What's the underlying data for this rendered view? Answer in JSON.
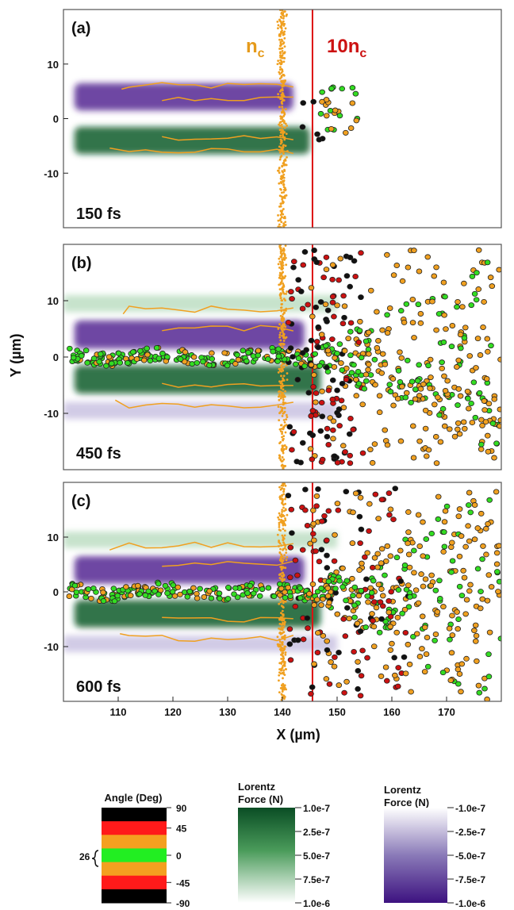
{
  "chart_data": {
    "type": "scatter",
    "xlabel": "X (µm)",
    "ylabel": "Y (µm)",
    "xlim": [
      100,
      180
    ],
    "ylim": [
      -20,
      20
    ],
    "x_ticks": [
      110,
      120,
      130,
      140,
      150,
      160,
      170
    ],
    "y_ticks": [
      10,
      0,
      -10
    ],
    "density_annotations": [
      {
        "text": "n",
        "sub": "c",
        "x": 140,
        "color": "#e59a1a"
      },
      {
        "text": "10n",
        "sub": "c",
        "x": 145.5,
        "color": "#cc1111"
      }
    ],
    "panels": [
      {
        "label": "(a)",
        "time": "150 fs"
      },
      {
        "label": "(b)",
        "time": "450 fs"
      },
      {
        "label": "(c)",
        "time": "600 fs"
      }
    ],
    "colorbars": [
      {
        "title": "Angle (Deg)",
        "ticks": [
          "90",
          "45",
          "0",
          "-45",
          "-90"
        ],
        "marker": "26",
        "bands": [
          "#000000",
          "#ff1a1a",
          "#f4a020",
          "#22ee22",
          "#f4a020",
          "#ff1a1a",
          "#000000"
        ]
      },
      {
        "title_line1": "Lorentz",
        "title_line2": "Force (N)",
        "ticks": [
          "1.0e-7",
          "2.5e-7",
          "5.0e-7",
          "7.5e-7",
          "1.0e-6"
        ],
        "color_top": "#0a4d24",
        "color_bottom": "#ffffff"
      },
      {
        "title_line1": "Lorentz",
        "title_line2": "Force (N)",
        "ticks": [
          "-1.0e-7",
          "-2.5e-7",
          "-5.0e-7",
          "-7.5e-7",
          "-1.0e-6"
        ],
        "color_top": "#ffffff",
        "color_bottom": "#3d1280"
      }
    ],
    "colors": {
      "nc_contour": "#f0a020",
      "critical_line": "#dd1111",
      "green_field": "#0d5c2a",
      "purple_field": "#4a1a8c",
      "particle_green": "#33dd22",
      "particle_orange": "#f0a020",
      "particle_red": "#cc1111",
      "particle_black": "#111111"
    }
  }
}
